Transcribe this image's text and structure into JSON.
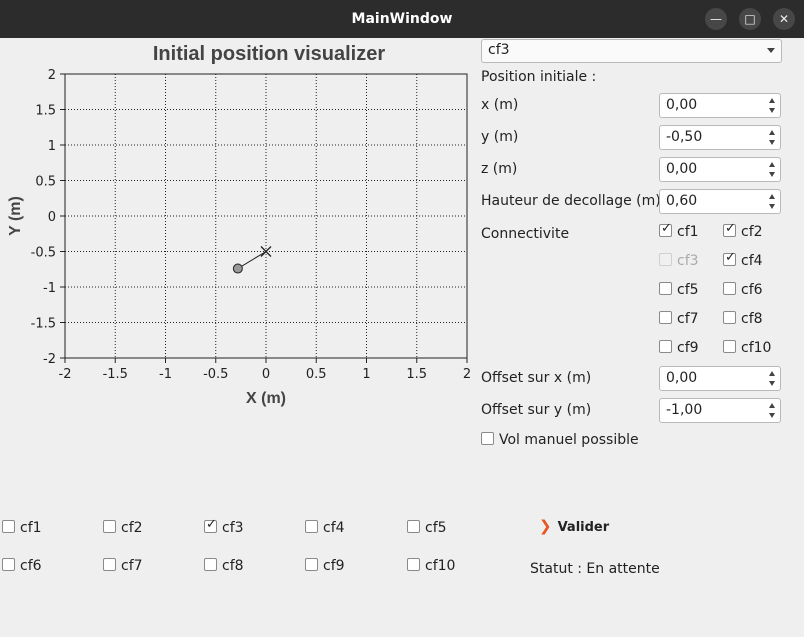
{
  "window": {
    "title": "MainWindow"
  },
  "plot": {
    "title": "Initial position visualizer",
    "xlabel": "X (m)",
    "ylabel": "Y (m)"
  },
  "chart_data": {
    "type": "scatter",
    "title": "Initial position visualizer",
    "xlabel": "X (m)",
    "ylabel": "Y (m)",
    "xlim": [
      -2,
      2
    ],
    "ylim": [
      -2,
      2
    ],
    "xticks": [
      "-2",
      "-1.5",
      "-1",
      "-0.5",
      "0",
      "0.5",
      "1",
      "1.5",
      "2"
    ],
    "yticks": [
      "2",
      "1.5",
      "1",
      "0.5",
      "0",
      "-0.5",
      "-1",
      "-1.5",
      "-2"
    ],
    "grid": true,
    "marker_cross": {
      "x": 0.0,
      "y": -0.5
    },
    "marker_circle": {
      "x": -0.28,
      "y": -0.74
    }
  },
  "drone_select": {
    "value": "cf3"
  },
  "form": {
    "position_title": "Position initiale :",
    "x_label": "x (m)",
    "x_value": "0,00",
    "y_label": "y (m)",
    "y_value": "-0,50",
    "z_label": "z (m)",
    "z_value": "0,00",
    "takeoff_label": "Hauteur de decollage (m)",
    "takeoff_value": "0,60",
    "connectivity_label": "Connectivite",
    "offset_x_label": "Offset sur x (m)",
    "offset_x_value": "0,00",
    "offset_y_label": "Offset sur y (m)",
    "offset_y_value": "-1,00",
    "manual_label": "Vol manuel possible"
  },
  "connectivity": [
    {
      "label": "cf1",
      "checked": true,
      "enabled": true
    },
    {
      "label": "cf2",
      "checked": true,
      "enabled": true
    },
    {
      "label": "cf3",
      "checked": false,
      "enabled": false
    },
    {
      "label": "cf4",
      "checked": true,
      "enabled": true
    },
    {
      "label": "cf5",
      "checked": false,
      "enabled": true
    },
    {
      "label": "cf6",
      "checked": false,
      "enabled": true
    },
    {
      "label": "cf7",
      "checked": false,
      "enabled": true
    },
    {
      "label": "cf8",
      "checked": false,
      "enabled": true
    },
    {
      "label": "cf9",
      "checked": false,
      "enabled": true
    },
    {
      "label": "cf10",
      "checked": false,
      "enabled": true
    }
  ],
  "bottom_drones": [
    {
      "label": "cf1",
      "checked": false
    },
    {
      "label": "cf2",
      "checked": false
    },
    {
      "label": "cf3",
      "checked": true
    },
    {
      "label": "cf4",
      "checked": false
    },
    {
      "label": "cf5",
      "checked": false
    },
    {
      "label": "cf6",
      "checked": false
    },
    {
      "label": "cf7",
      "checked": false
    },
    {
      "label": "cf8",
      "checked": false
    },
    {
      "label": "cf9",
      "checked": false
    },
    {
      "label": "cf10",
      "checked": false
    }
  ],
  "actions": {
    "validate_label": "Valider"
  },
  "status": {
    "text": "Statut : En attente"
  },
  "colors": {
    "titlebar": "#2c2c2c",
    "accent": "#e95420"
  }
}
